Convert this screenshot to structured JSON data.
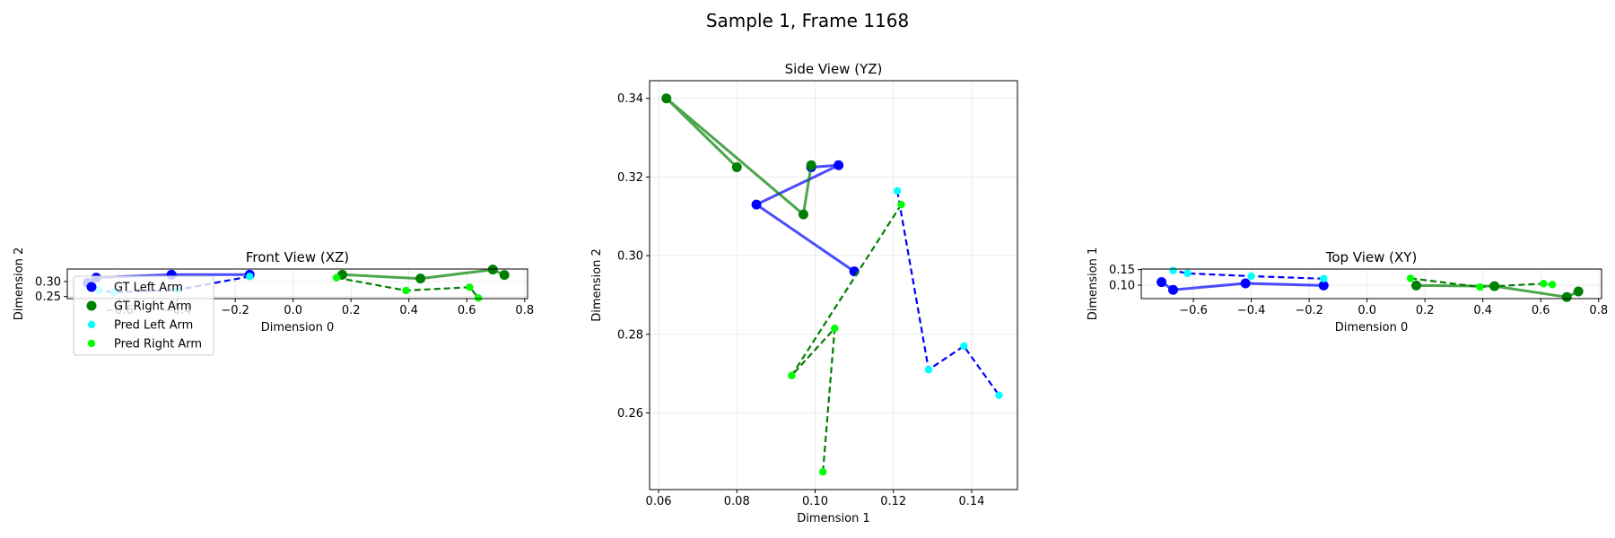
{
  "figure_title": "Sample 1, Frame 1168",
  "colors": {
    "gt_left": "#0000ff",
    "gt_right": "#008000",
    "pred_left": "#00ffff",
    "pred_right": "#00ff00",
    "pred_left_line": "#0000ff",
    "pred_right_line": "#008000"
  },
  "legend": {
    "gt_left": "GT Left Arm",
    "gt_right": "GT Right Arm",
    "pred_left": "Pred Left Arm",
    "pred_right": "Pred Right Arm"
  },
  "chart_data": [
    {
      "type": "line",
      "title": "Front View (XZ)",
      "xlabel": "Dimension 0",
      "ylabel": "Dimension 2",
      "xlim": [
        -0.78,
        0.81
      ],
      "ylim": [
        0.243,
        0.342
      ],
      "xticks": [
        -0.6,
        -0.4,
        -0.2,
        0.0,
        0.2,
        0.4,
        0.6,
        0.8
      ],
      "xtick_labels": [
        "−0.6",
        "−0.4",
        "−0.2",
        "0.0",
        "0.2",
        "0.4",
        "0.6",
        "0.8"
      ],
      "yticks": [
        0.25,
        0.3
      ],
      "ytick_labels": [
        "0.25",
        "0.30"
      ],
      "grid": true,
      "legend_position": "lower-left",
      "series": [
        {
          "name": "GT Left Arm",
          "x": [
            -0.15,
            -0.42,
            -0.68,
            -0.71
          ],
          "y": [
            0.323,
            0.323,
            0.313,
            0.296
          ]
        },
        {
          "name": "GT Right Arm",
          "x": [
            0.17,
            0.44,
            0.69,
            0.73
          ],
          "y": [
            0.323,
            0.31,
            0.34,
            0.322
          ]
        },
        {
          "name": "Pred Left Arm",
          "x": [
            -0.15,
            -0.4,
            -0.62,
            -0.67
          ],
          "y": [
            0.317,
            0.272,
            0.264,
            0.271
          ]
        },
        {
          "name": "Pred Right Arm",
          "x": [
            0.15,
            0.39,
            0.61,
            0.64
          ],
          "y": [
            0.313,
            0.27,
            0.281,
            0.245
          ]
        }
      ]
    },
    {
      "type": "line",
      "title": "Side View (YZ)",
      "xlabel": "Dimension 1",
      "ylabel": "Dimension 2",
      "xlim": [
        0.0577,
        0.1517
      ],
      "ylim": [
        0.2405,
        0.3445
      ],
      "xticks": [
        0.06,
        0.08,
        0.1,
        0.12,
        0.14
      ],
      "xtick_labels": [
        "0.06",
        "0.08",
        "0.10",
        "0.12",
        "0.14"
      ],
      "yticks": [
        0.26,
        0.28,
        0.3,
        0.32,
        0.34
      ],
      "ytick_labels": [
        "0.26",
        "0.28",
        "0.30",
        "0.32",
        "0.34"
      ],
      "grid": true,
      "series": [
        {
          "name": "GT Left Arm",
          "x": [
            0.11,
            0.085,
            0.106,
            0.099
          ],
          "y": [
            0.296,
            0.313,
            0.323,
            0.3225
          ]
        },
        {
          "name": "GT Right Arm",
          "x": [
            0.099,
            0.097,
            0.062,
            0.08
          ],
          "y": [
            0.323,
            0.3105,
            0.34,
            0.3225
          ]
        },
        {
          "name": "Pred Left Arm",
          "x": [
            0.121,
            0.129,
            0.138,
            0.147
          ],
          "y": [
            0.3165,
            0.271,
            0.277,
            0.2645
          ]
        },
        {
          "name": "Pred Right Arm",
          "x": [
            0.122,
            0.094,
            0.105,
            0.102
          ],
          "y": [
            0.313,
            0.2695,
            0.2815,
            0.245
          ]
        }
      ]
    },
    {
      "type": "line",
      "title": "Top View (XY)",
      "xlabel": "Dimension 0",
      "ylabel": "Dimension 1",
      "xlim": [
        -0.78,
        0.81
      ],
      "ylim": [
        0.057,
        0.152
      ],
      "xticks": [
        -0.6,
        -0.4,
        -0.2,
        0.0,
        0.2,
        0.4,
        0.6,
        0.8
      ],
      "xtick_labels": [
        "−0.6",
        "−0.4",
        "−0.2",
        "0.0",
        "0.2",
        "0.4",
        "0.6",
        "0.8"
      ],
      "yticks": [
        0.1,
        0.15
      ],
      "ytick_labels": [
        "0.10",
        "0.15"
      ],
      "grid": true,
      "series": [
        {
          "name": "GT Left Arm",
          "x": [
            -0.15,
            -0.42,
            -0.67,
            -0.71
          ],
          "y": [
            0.099,
            0.106,
            0.085,
            0.11
          ]
        },
        {
          "name": "GT Right Arm",
          "x": [
            0.17,
            0.44,
            0.69,
            0.73
          ],
          "y": [
            0.099,
            0.097,
            0.062,
            0.08
          ]
        },
        {
          "name": "Pred Left Arm",
          "x": [
            -0.15,
            -0.4,
            -0.62,
            -0.67
          ],
          "y": [
            0.121,
            0.129,
            0.138,
            0.147
          ]
        },
        {
          "name": "Pred Right Arm",
          "x": [
            0.15,
            0.39,
            0.61,
            0.64
          ],
          "y": [
            0.122,
            0.094,
            0.105,
            0.102
          ]
        }
      ]
    }
  ]
}
